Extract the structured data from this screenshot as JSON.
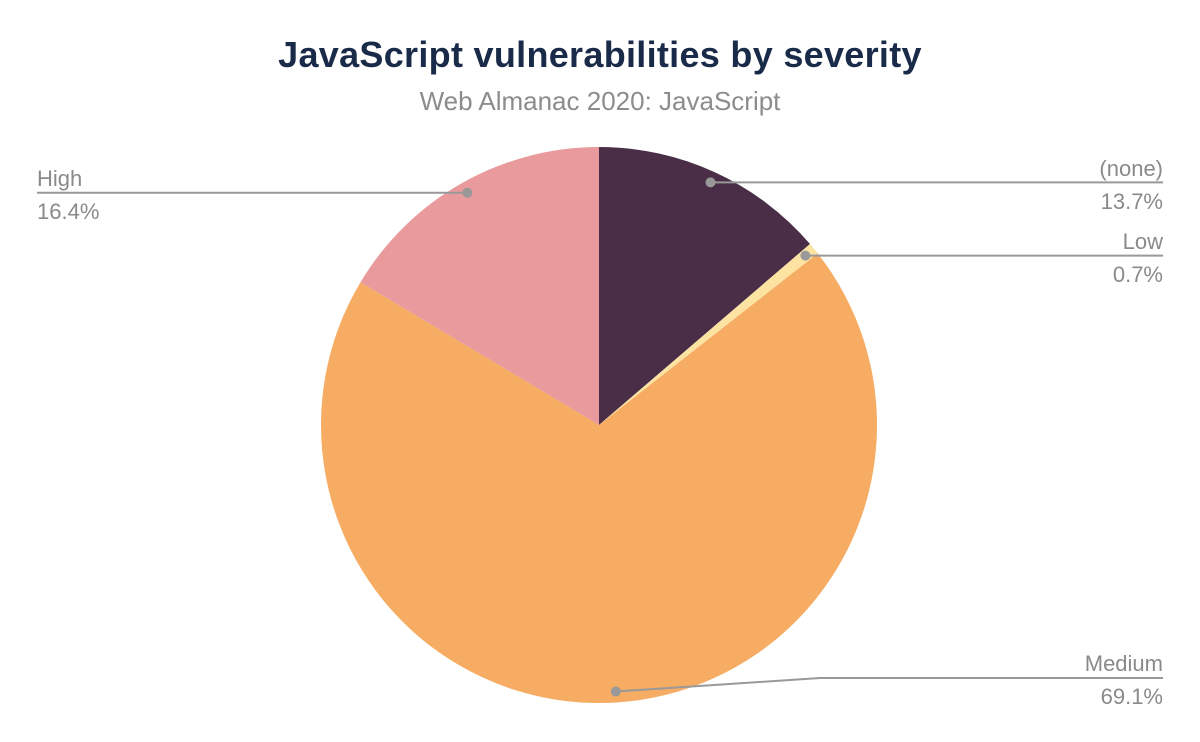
{
  "chart_data": {
    "type": "pie",
    "title": "JavaScript vulnerabilities by severity",
    "subtitle": "Web Almanac 2020: JavaScript",
    "unit": "percent",
    "start_angle_deg": 0,
    "direction": "clockwise",
    "legend_position": "none",
    "slices": [
      {
        "label": "(none)",
        "value": 13.7,
        "display": "13.7%",
        "color": "#4a2e47"
      },
      {
        "label": "Low",
        "value": 0.7,
        "display": "0.7%",
        "color": "#fde3a2"
      },
      {
        "label": "Medium",
        "value": 69.1,
        "display": "69.1%",
        "color": "#f6ac63"
      },
      {
        "label": "High",
        "value": 16.4,
        "display": "16.4%",
        "color": "#e99a9c"
      }
    ],
    "colors": {
      "title": "#1a2b49",
      "subtitle": "#8c8c8c",
      "label_text": "#8a8a8a",
      "connector": "#999999",
      "background": "#ffffff"
    }
  }
}
